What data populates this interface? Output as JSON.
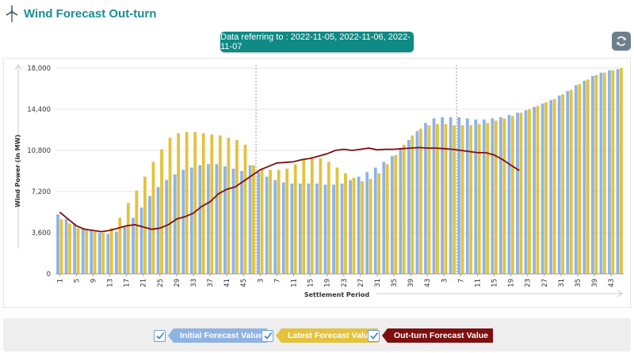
{
  "header": {
    "title": "Wind Forecast Out-turn",
    "icon": "wind-turbine-icon"
  },
  "date_info": {
    "text": "Data referring to : 2022-11-05, 2022-11-06, 2022-11-07"
  },
  "refresh": {
    "icon": "refresh-icon"
  },
  "colors": {
    "initial": "#8fb3e3",
    "latest": "#e3c23f",
    "outturn": "#7d0f0f",
    "accent": "#0f8a84"
  },
  "legend": [
    {
      "label": "Initial Forecast Value",
      "color": "#8fb3e3",
      "checked": true
    },
    {
      "label": "Latest Forecast Value",
      "color": "#e3c23f",
      "checked": true
    },
    {
      "label": "Out-turn Forecast Value",
      "color": "#7d0f0f",
      "checked": true
    }
  ],
  "chart_data": {
    "type": "bar",
    "xlabel": "Settlement Period",
    "ylabel": "Wind Power (in MW)",
    "ylim": [
      0,
      18000
    ],
    "yticks": [
      0,
      3600,
      7200,
      10800,
      14400,
      18000
    ],
    "ytick_labels": [
      "0",
      "3,600",
      "7,200",
      "10,800",
      "14,400",
      "18,000"
    ],
    "x_tick_labels": [
      "1",
      "5",
      "9",
      "13",
      "17",
      "21",
      "25",
      "29",
      "33",
      "37",
      "41",
      "45",
      "3",
      "7",
      "11",
      "15",
      "19",
      "23",
      "27",
      "31",
      "35",
      "39",
      "43",
      "3",
      "7",
      "11",
      "15",
      "19",
      "23",
      "27",
      "31",
      "35",
      "39",
      "43"
    ],
    "day_boundaries_after_period_index": [
      23,
      47
    ],
    "series": [
      {
        "name": "Initial Forecast Value",
        "kind": "bar",
        "values": [
          5200,
          4800,
          4400,
          4000,
          3800,
          3600,
          3500,
          3700,
          4200,
          4900,
          5800,
          6800,
          7600,
          8200,
          8700,
          9100,
          9300,
          9500,
          9600,
          9600,
          9400,
          9200,
          9000,
          9500,
          8900,
          8500,
          8200,
          8000,
          7900,
          7900,
          7900,
          7900,
          7800,
          7800,
          7900,
          8200,
          8500,
          8900,
          9300,
          9800,
          10300,
          11000,
          11700,
          12500,
          13200,
          13600,
          13700,
          13700,
          13700,
          13600,
          13500,
          13500,
          13600,
          13700,
          13900,
          14100,
          14300,
          14600,
          14900,
          15200,
          15600,
          16000,
          16500,
          16900,
          17300,
          17600,
          17800,
          17900
        ]
      },
      {
        "name": "Latest Forecast Value",
        "kind": "bar",
        "values": [
          4800,
          4400,
          4000,
          3800,
          3700,
          3600,
          4000,
          4900,
          6200,
          7300,
          8500,
          9800,
          10900,
          11900,
          12300,
          12400,
          12400,
          12300,
          12200,
          12100,
          11900,
          11700,
          11300,
          9500,
          9200,
          9100,
          9100,
          9200,
          9600,
          10000,
          10200,
          10100,
          9800,
          9300,
          8800,
          8400,
          8100,
          8300,
          8800,
          9600,
          10400,
          11300,
          12100,
          12700,
          13000,
          13100,
          13100,
          13000,
          13000,
          13000,
          13100,
          13200,
          13400,
          13600,
          13800,
          14100,
          14400,
          14700,
          15000,
          15300,
          15700,
          16100,
          16600,
          17000,
          17400,
          17600,
          17800,
          18000
        ]
      },
      {
        "name": "Out-turn Forecast Value",
        "kind": "line",
        "values": [
          5400,
          4800,
          4200,
          3900,
          3800,
          3700,
          3800,
          4000,
          4200,
          4300,
          4100,
          3900,
          4000,
          4300,
          4800,
          5000,
          5300,
          5900,
          6300,
          7000,
          7400,
          7600,
          8100,
          8600,
          9100,
          9400,
          9700,
          9750,
          9800,
          10000,
          10100,
          10300,
          10500,
          10800,
          10900,
          10800,
          10900,
          11000,
          10850,
          10900,
          10900,
          10950,
          11000,
          11050,
          11000,
          11000,
          10950,
          10900,
          10800,
          10700,
          10600,
          10600,
          10400,
          10000,
          9500,
          9050
        ]
      }
    ]
  }
}
